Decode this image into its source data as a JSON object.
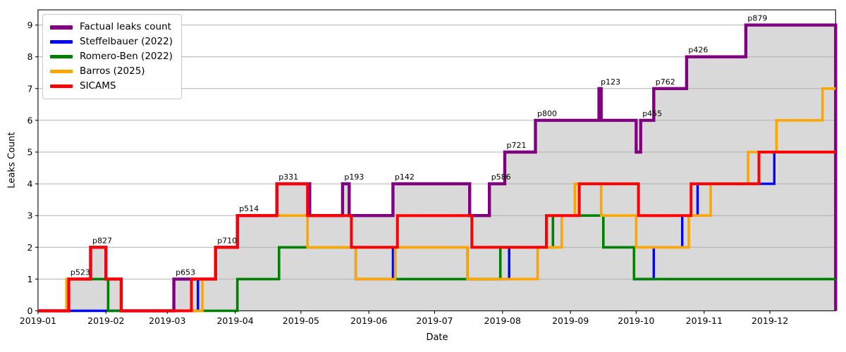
{
  "chart_data": {
    "type": "step_line",
    "title": "",
    "xlabel": "Date",
    "ylabel": "Leaks Count",
    "x_range": [
      "2019-01-01",
      "2019-12-31"
    ],
    "ylim": [
      0,
      9.5
    ],
    "y_ticks": [
      0,
      1,
      2,
      3,
      4,
      5,
      6,
      7,
      8,
      9
    ],
    "x_ticks": [
      {
        "date": "2019-01-01",
        "label": "2019-01"
      },
      {
        "date": "2019-02-01",
        "label": "2019-02"
      },
      {
        "date": "2019-03-01",
        "label": "2019-03"
      },
      {
        "date": "2019-04-01",
        "label": "2019-04"
      },
      {
        "date": "2019-05-01",
        "label": "2019-05"
      },
      {
        "date": "2019-06-01",
        "label": "2019-06"
      },
      {
        "date": "2019-07-01",
        "label": "2019-07"
      },
      {
        "date": "2019-08-01",
        "label": "2019-08"
      },
      {
        "date": "2019-09-01",
        "label": "2019-09"
      },
      {
        "date": "2019-10-01",
        "label": "2019-10"
      },
      {
        "date": "2019-11-01",
        "label": "2019-11"
      },
      {
        "date": "2019-12-01",
        "label": "2019-12"
      }
    ],
    "grid": "horizontal",
    "grid_color": "#b0b0b0",
    "fill_under_series": "Factual leaks count",
    "fill_color": "#d9d9d9",
    "legend_position": "upper-left",
    "series": [
      {
        "name": "Factual leaks count",
        "color": "#800080",
        "line_width": 4.4,
        "steps": [
          [
            "2019-01-01",
            0
          ],
          [
            "2019-01-15",
            1
          ],
          [
            "2019-01-25",
            2
          ],
          [
            "2019-02-01",
            1
          ],
          [
            "2019-02-08",
            0
          ],
          [
            "2019-03-04",
            1
          ],
          [
            "2019-03-23",
            2
          ],
          [
            "2019-04-02",
            3
          ],
          [
            "2019-04-20",
            4
          ],
          [
            "2019-05-05",
            3
          ],
          [
            "2019-05-20",
            4
          ],
          [
            "2019-05-23",
            3
          ],
          [
            "2019-06-12",
            4
          ],
          [
            "2019-07-17",
            3
          ],
          [
            "2019-07-26",
            4
          ],
          [
            "2019-08-02",
            5
          ],
          [
            "2019-08-16",
            6
          ],
          [
            "2019-09-14",
            7
          ],
          [
            "2019-09-15",
            6
          ],
          [
            "2019-10-01",
            5
          ],
          [
            "2019-10-03",
            6
          ],
          [
            "2019-10-09",
            7
          ],
          [
            "2019-10-24",
            8
          ],
          [
            "2019-11-20",
            9
          ],
          [
            "2019-12-31",
            0
          ]
        ]
      },
      {
        "name": "Steffelbauer (2022)",
        "color": "#0000ff",
        "line_width": 3.4,
        "steps": [
          [
            "2019-01-01",
            0
          ],
          [
            "2019-03-15",
            1
          ],
          [
            "2019-03-23",
            2
          ],
          [
            "2019-04-02",
            3
          ],
          [
            "2019-05-24",
            2
          ],
          [
            "2019-05-26",
            1
          ],
          [
            "2019-06-12",
            2
          ],
          [
            "2019-07-16",
            1
          ],
          [
            "2019-08-04",
            2
          ],
          [
            "2019-08-28",
            3
          ],
          [
            "2019-09-16",
            2
          ],
          [
            "2019-09-30",
            1
          ],
          [
            "2019-10-09",
            2
          ],
          [
            "2019-10-22",
            3
          ],
          [
            "2019-10-29",
            4
          ],
          [
            "2019-12-03",
            5
          ]
        ]
      },
      {
        "name": "Romero-Ben (2022)",
        "color": "#008000",
        "line_width": 3.6,
        "steps": [
          [
            "2019-01-01",
            0
          ],
          [
            "2019-01-15",
            1
          ],
          [
            "2019-02-02",
            0
          ],
          [
            "2019-04-02",
            1
          ],
          [
            "2019-04-21",
            2
          ],
          [
            "2019-06-13",
            1
          ],
          [
            "2019-07-31",
            2
          ],
          [
            "2019-08-24",
            3
          ],
          [
            "2019-09-16",
            2
          ],
          [
            "2019-09-30",
            1
          ]
        ]
      },
      {
        "name": "Barros (2025)",
        "color": "#ffa500",
        "line_width": 3.6,
        "steps": [
          [
            "2019-01-01",
            0
          ],
          [
            "2019-01-14",
            1
          ],
          [
            "2019-01-25",
            2
          ],
          [
            "2019-02-01",
            1
          ],
          [
            "2019-02-08",
            0
          ],
          [
            "2019-03-17",
            1
          ],
          [
            "2019-03-23",
            2
          ],
          [
            "2019-04-02",
            3
          ],
          [
            "2019-05-04",
            2
          ],
          [
            "2019-05-26",
            1
          ],
          [
            "2019-06-13",
            2
          ],
          [
            "2019-07-16",
            1
          ],
          [
            "2019-08-17",
            2
          ],
          [
            "2019-08-28",
            3
          ],
          [
            "2019-09-03",
            4
          ],
          [
            "2019-09-15",
            3
          ],
          [
            "2019-10-01",
            2
          ],
          [
            "2019-10-25",
            3
          ],
          [
            "2019-11-04",
            4
          ],
          [
            "2019-11-21",
            5
          ],
          [
            "2019-12-04",
            6
          ],
          [
            "2019-12-25",
            7
          ]
        ]
      },
      {
        "name": "SICAMS",
        "color": "#ff0000",
        "line_width": 4.0,
        "steps": [
          [
            "2019-01-01",
            0
          ],
          [
            "2019-01-15",
            1
          ],
          [
            "2019-01-25",
            2
          ],
          [
            "2019-02-01",
            1
          ],
          [
            "2019-02-08",
            0
          ],
          [
            "2019-03-12",
            1
          ],
          [
            "2019-03-23",
            2
          ],
          [
            "2019-04-02",
            3
          ],
          [
            "2019-04-20",
            4
          ],
          [
            "2019-05-04",
            3
          ],
          [
            "2019-05-24",
            2
          ],
          [
            "2019-06-14",
            3
          ],
          [
            "2019-07-18",
            2
          ],
          [
            "2019-08-21",
            3
          ],
          [
            "2019-09-05",
            4
          ],
          [
            "2019-10-02",
            3
          ],
          [
            "2019-10-26",
            4
          ],
          [
            "2019-11-26",
            5
          ]
        ]
      }
    ],
    "annotations": [
      {
        "label": "p523",
        "date": "2019-01-15",
        "level": 1
      },
      {
        "label": "p827",
        "date": "2019-01-25",
        "level": 2
      },
      {
        "label": "p653",
        "date": "2019-03-04",
        "level": 1
      },
      {
        "label": "p710",
        "date": "2019-03-23",
        "level": 2
      },
      {
        "label": "p514",
        "date": "2019-04-02",
        "level": 3
      },
      {
        "label": "p331",
        "date": "2019-04-20",
        "level": 4
      },
      {
        "label": "p193",
        "date": "2019-05-20",
        "level": 4
      },
      {
        "label": "p142",
        "date": "2019-06-12",
        "level": 4
      },
      {
        "label": "p586",
        "date": "2019-07-26",
        "level": 4
      },
      {
        "label": "p721",
        "date": "2019-08-02",
        "level": 5
      },
      {
        "label": "p800",
        "date": "2019-08-16",
        "level": 6
      },
      {
        "label": "p123",
        "date": "2019-09-14",
        "level": 7
      },
      {
        "label": "p455",
        "date": "2019-10-03",
        "level": 6
      },
      {
        "label": "p762",
        "date": "2019-10-09",
        "level": 7
      },
      {
        "label": "p426",
        "date": "2019-10-24",
        "level": 8
      },
      {
        "label": "p879",
        "date": "2019-11-20",
        "level": 9
      }
    ]
  }
}
